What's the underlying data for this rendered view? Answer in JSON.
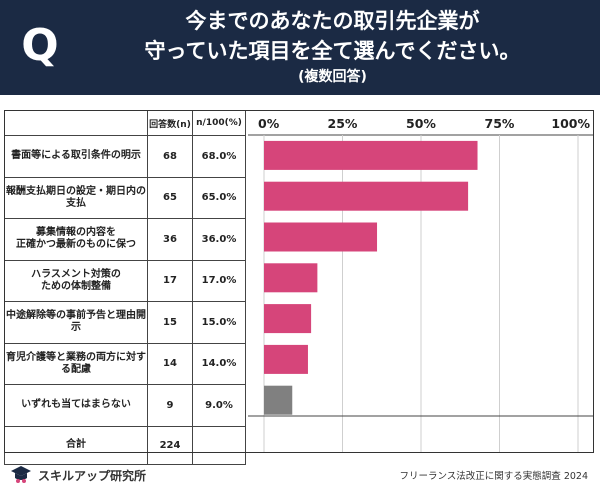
{
  "header": {
    "q_mark": "Q",
    "title_line1": "今までのあなたの取引先企業が",
    "title_line2": "守っていた項目を全て選んでください。",
    "title_line3": "(複数回答)"
  },
  "table": {
    "col_count": "回答数(n)",
    "col_pct": "n/100(%)"
  },
  "rows": [
    {
      "label": "書面等による取引条件の明示",
      "count": "68",
      "pct": "68.0%"
    },
    {
      "label": "報酬支払期日の設定・期日内の支払",
      "count": "65",
      "pct": "65.0%"
    },
    {
      "label": "募集情報の内容を\n正確かつ最新のものに保つ",
      "count": "36",
      "pct": "36.0%"
    },
    {
      "label": "ハラスメント対策の\nための体制整備",
      "count": "17",
      "pct": "17.0%"
    },
    {
      "label": "中途解除等の事前予告と理由開示",
      "count": "15",
      "pct": "15.0%"
    },
    {
      "label": "育児介護等と業務の両方に対する配慮",
      "count": "14",
      "pct": "14.0%"
    },
    {
      "label": "いずれも当てはまらない",
      "count": "9",
      "pct": "9.0%"
    }
  ],
  "total": {
    "label": "合計",
    "count": "224"
  },
  "chart_data": {
    "type": "bar",
    "orientation": "horizontal",
    "categories": [
      "書面等による取引条件の明示",
      "報酬支払期日の設定・期日内の支払",
      "募集情報の内容を正確かつ最新のものに保つ",
      "ハラスメント対策のための体制整備",
      "中途解除等の事前予告と理由開示",
      "育児介護等と業務の両方に対する配慮",
      "いずれも当てはまらない"
    ],
    "values": [
      68.0,
      65.0,
      36.0,
      17.0,
      15.0,
      14.0,
      9.0
    ],
    "xlim": [
      0,
      100
    ],
    "ticks": [
      "0%",
      "25%",
      "50%",
      "75%",
      "100%"
    ],
    "tick_values": [
      0,
      25,
      50,
      75,
      100
    ],
    "bar_colors": [
      "#d6457a",
      "#d6457a",
      "#d6457a",
      "#d6457a",
      "#d6457a",
      "#d6457a",
      "#808080"
    ],
    "grid": true
  },
  "footer": {
    "brand": "スキルアップ研究所",
    "source": "フリーランス法改正に関する実態調査 2024"
  }
}
